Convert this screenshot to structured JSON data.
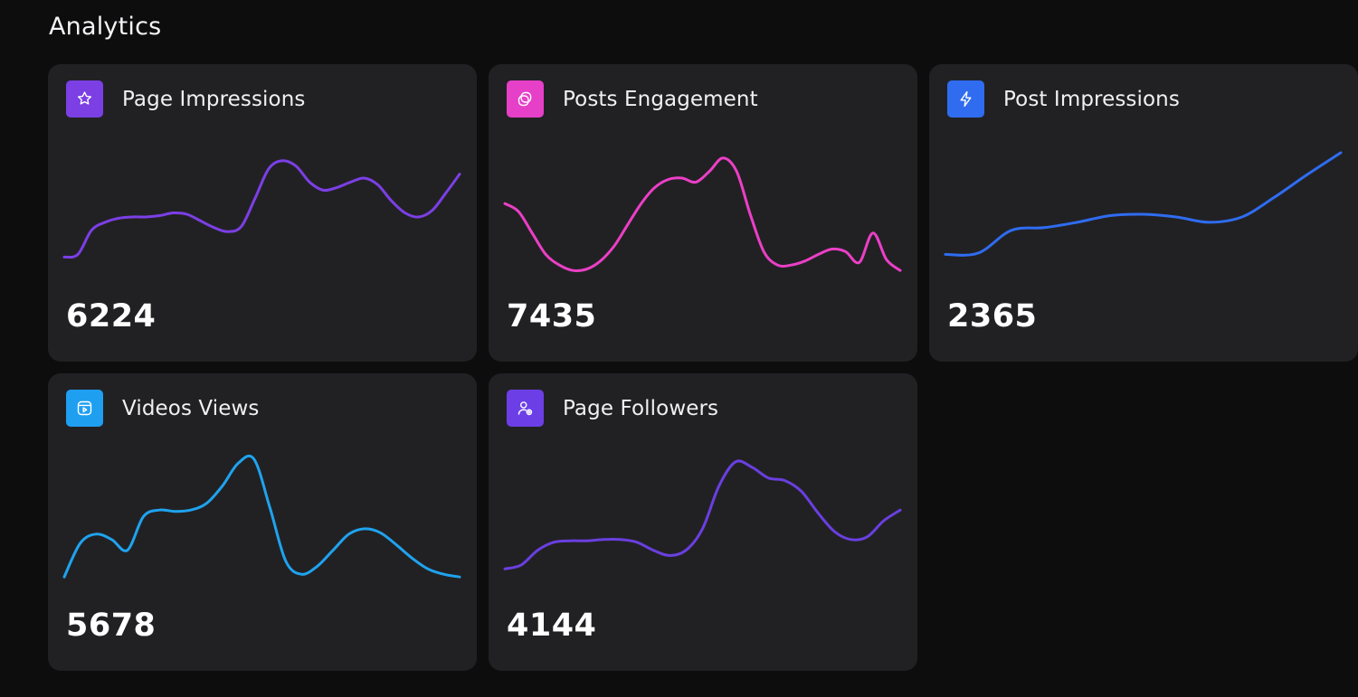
{
  "header": {
    "title": "Analytics"
  },
  "cards": [
    {
      "title": "Page Impressions",
      "value": "6224",
      "icon": "star-badge-icon",
      "icon_color": "#7b3fe4",
      "line_color": "#7c3fe6",
      "series": [
        18,
        20,
        38,
        44,
        47,
        48,
        48,
        49,
        51,
        50,
        45,
        40,
        37,
        41,
        62,
        84,
        90,
        86,
        74,
        68,
        70,
        74,
        77,
        72,
        60,
        51,
        48,
        53,
        66,
        80
      ]
    },
    {
      "title": "Posts Engagement",
      "value": "7435",
      "icon": "chat-bubbles-icon",
      "icon_color": "#e63fc8",
      "line_color": "#ec3fc6",
      "series": [
        58,
        52,
        36,
        20,
        12,
        8,
        9,
        15,
        26,
        42,
        58,
        70,
        76,
        77,
        74,
        82,
        92,
        82,
        50,
        22,
        12,
        12,
        15,
        20,
        24,
        22,
        14,
        36,
        16,
        8
      ]
    },
    {
      "title": "Post Impressions",
      "value": "2365",
      "icon": "bolt-icon",
      "icon_color": "#2f6cf0",
      "line_color": "#2f6cf0",
      "series": [
        20,
        21,
        38,
        40,
        44,
        49,
        50,
        48,
        44,
        48,
        63,
        80,
        96
      ]
    },
    {
      "title": "Videos Views",
      "value": "5678",
      "icon": "video-play-icon",
      "icon_color": "#1f9ff0",
      "line_color": "#1fa3ee",
      "series": [
        10,
        35,
        42,
        38,
        30,
        55,
        60,
        59,
        60,
        65,
        78,
        95,
        98,
        62,
        22,
        12,
        18,
        30,
        42,
        46,
        43,
        34,
        24,
        16,
        12,
        10
      ]
    },
    {
      "title": "Page Followers",
      "value": "4144",
      "icon": "user-add-icon",
      "icon_color": "#6c3fe6",
      "line_color": "#6a3fe0",
      "series": [
        16,
        19,
        30,
        36,
        37,
        37,
        38,
        38,
        36,
        30,
        26,
        30,
        46,
        78,
        96,
        92,
        84,
        82,
        74,
        58,
        44,
        38,
        40,
        52,
        60
      ]
    }
  ]
}
